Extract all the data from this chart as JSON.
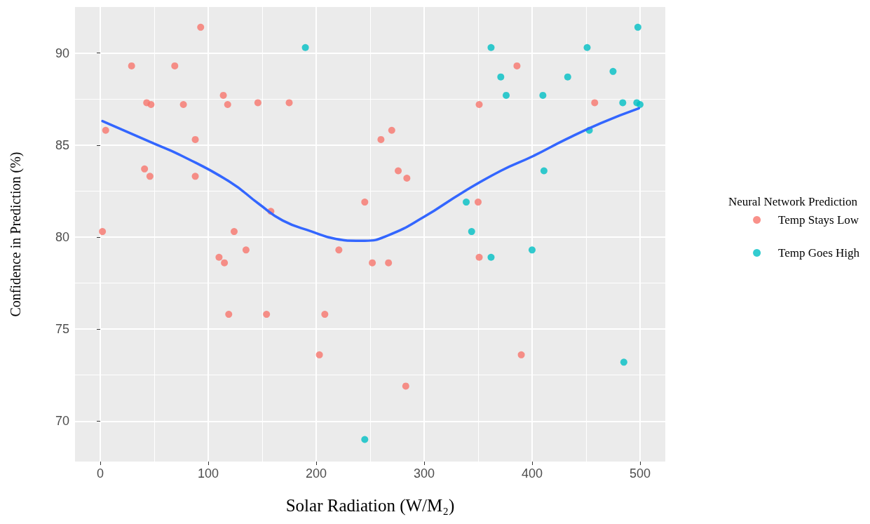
{
  "chart_data": {
    "type": "scatter",
    "xlabel": "Solar Radiation (W/M₂)",
    "ylabel": "Confidence in Prediction (%)",
    "legend_title": "Neural Network Prediction",
    "legend": "right",
    "grid": true,
    "marker": "circle",
    "xlim": [
      -23.4,
      523.4
    ],
    "ylim": [
      67.8,
      92.5
    ],
    "xticks": [
      0,
      100,
      200,
      300,
      400,
      500
    ],
    "yticks": [
      70,
      75,
      80,
      85,
      90
    ],
    "series": [
      {
        "name": "Temp Stays Low",
        "color": "#f8766d",
        "x": [
          2,
          5,
          29,
          41,
          43,
          46,
          47,
          69,
          77,
          88,
          88,
          93,
          110,
          114,
          115,
          118,
          119,
          124,
          135,
          146,
          154,
          158,
          175,
          203,
          208,
          221,
          245,
          252,
          260,
          267,
          270,
          276,
          283,
          284,
          350,
          351,
          351,
          386,
          390,
          458
        ],
        "values": [
          80.3,
          85.8,
          89.3,
          83.7,
          87.3,
          83.3,
          87.2,
          89.3,
          87.2,
          85.3,
          83.3,
          91.4,
          78.9,
          87.7,
          78.6,
          87.2,
          75.8,
          80.3,
          79.3,
          87.3,
          75.8,
          81.4,
          87.3,
          73.6,
          75.8,
          79.3,
          81.9,
          78.6,
          85.3,
          78.6,
          85.8,
          83.6,
          71.9,
          83.2,
          81.9,
          87.2,
          78.9,
          89.3,
          73.6,
          87.3
        ]
      },
      {
        "name": "Temp Goes High",
        "color": "#00bfc4",
        "x": [
          190,
          245,
          339,
          344,
          362,
          362,
          371,
          376,
          400,
          410,
          411,
          433,
          451,
          453,
          475,
          484,
          485,
          497,
          498,
          500
        ],
        "values": [
          90.3,
          69.0,
          81.9,
          80.3,
          90.3,
          78.9,
          88.7,
          87.7,
          79.3,
          87.7,
          83.6,
          88.7,
          90.3,
          85.8,
          89.0,
          87.3,
          73.2,
          87.3,
          91.4,
          87.2
        ]
      },
      {
        "type": "line",
        "color": "#3366ff",
        "marker": "none",
        "line_style": "solid",
        "x": [
          2,
          49,
          76,
          120,
          147,
          169,
          196,
          218,
          237,
          245,
          267,
          300,
          335,
          371,
          401,
          431,
          464,
          499
        ],
        "values": [
          86.3,
          85.1,
          84.4,
          83.0,
          81.8,
          80.9,
          80.3,
          79.9,
          79.8,
          79.8,
          80.1,
          81.1,
          82.4,
          83.6,
          84.4,
          85.3,
          86.2,
          87.0
        ]
      }
    ]
  }
}
